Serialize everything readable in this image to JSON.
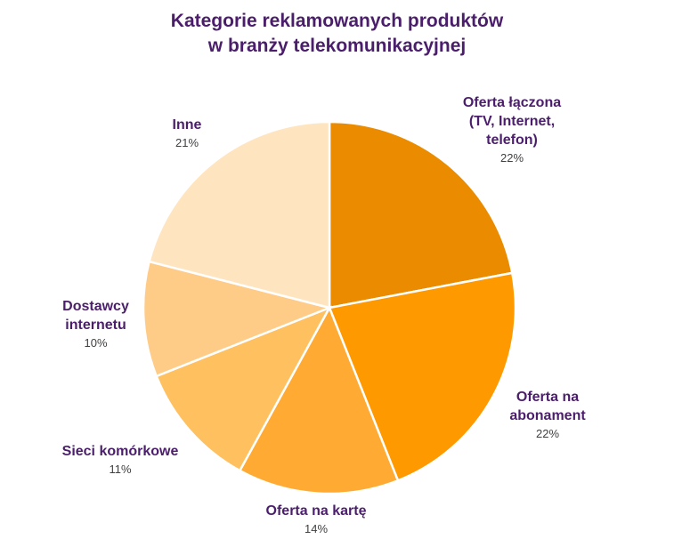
{
  "chart_data": {
    "type": "pie",
    "title": "Kategorie reklamowanych produktów w branży telekomunikacyjnej",
    "title_lines": [
      "Kategorie reklamowanych produktów",
      "w branży telekomunikacyjnej"
    ],
    "categories": [
      "Oferta łączona (TV, Internet, telefon)",
      "Oferta na abonament",
      "Oferta na kartę",
      "Sieci komórkowe",
      "Dostawcy internetu",
      "Inne"
    ],
    "values": [
      22,
      22,
      14,
      11,
      10,
      21
    ],
    "value_labels": [
      "22%",
      "22%",
      "14%",
      "11%",
      "10%",
      "21%"
    ],
    "colors": [
      "#EB8C00",
      "#FF9900",
      "#FFAB33",
      "#FFC060",
      "#FFCC88",
      "#FFE5BF"
    ],
    "legend": "none (data labels outside slices)",
    "start_angle": "12 o'clock, clockwise"
  },
  "labels": {
    "l0": {
      "lines": [
        "Oferta łączona",
        "(TV, Internet,",
        "telefon)"
      ],
      "pct": "22%"
    },
    "l1": {
      "lines": [
        "Oferta na",
        "abonament"
      ],
      "pct": "22%"
    },
    "l2": {
      "lines": [
        "Oferta na kartę"
      ],
      "pct": "14%"
    },
    "l3": {
      "lines": [
        "Sieci komórkowe"
      ],
      "pct": "11%"
    },
    "l4": {
      "lines": [
        "Dostawcy",
        "internetu"
      ],
      "pct": "10%"
    },
    "l5": {
      "lines": [
        "Inne"
      ],
      "pct": "21%"
    }
  }
}
